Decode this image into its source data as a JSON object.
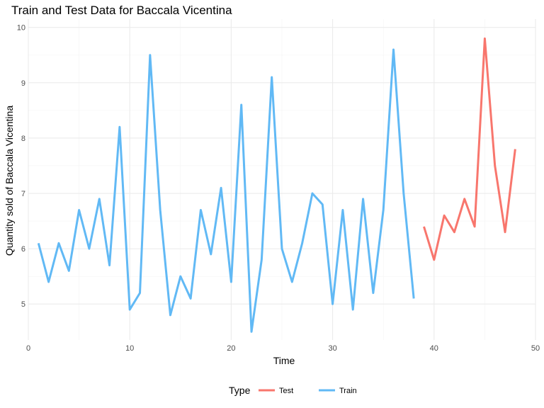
{
  "chart_data": {
    "type": "line",
    "title": "Train and Test Data for Baccala Vicentina",
    "xlabel": "Time",
    "ylabel": "Quantity sold of Baccala Vicentina",
    "xlim": [
      0,
      50
    ],
    "ylim": [
      4.35,
      10.15
    ],
    "x_ticks": [
      0,
      10,
      20,
      30,
      40,
      50
    ],
    "y_ticks": [
      5,
      6,
      7,
      8,
      9,
      10
    ],
    "grid": true,
    "legend": {
      "title": "Type",
      "position": "bottom",
      "entries": [
        "Test",
        "Train"
      ]
    },
    "series": [
      {
        "name": "Test",
        "color": "#f8766d",
        "x": [
          39,
          40,
          41,
          42,
          43,
          44,
          45,
          46,
          47,
          48
        ],
        "y": [
          6.4,
          5.8,
          6.6,
          6.3,
          6.9,
          6.4,
          9.8,
          7.5,
          6.3,
          7.8
        ]
      },
      {
        "name": "Train",
        "color": "#61b9f5",
        "x": [
          1,
          2,
          3,
          4,
          5,
          6,
          7,
          8,
          9,
          10,
          11,
          12,
          13,
          14,
          15,
          16,
          17,
          18,
          19,
          20,
          21,
          22,
          23,
          24,
          25,
          26,
          27,
          28,
          29,
          30,
          31,
          32,
          33,
          34,
          35,
          36,
          37,
          38
        ],
        "y": [
          6.1,
          5.4,
          6.1,
          5.6,
          6.7,
          6.0,
          6.9,
          5.7,
          8.2,
          4.9,
          5.2,
          9.5,
          6.7,
          4.8,
          5.5,
          5.1,
          6.7,
          5.9,
          7.1,
          5.4,
          8.6,
          4.5,
          5.8,
          9.1,
          6.0,
          5.4,
          6.1,
          7.0,
          6.8,
          5.0,
          6.7,
          4.9,
          6.9,
          5.2,
          6.7,
          9.6,
          7.0,
          5.1
        ]
      }
    ]
  }
}
